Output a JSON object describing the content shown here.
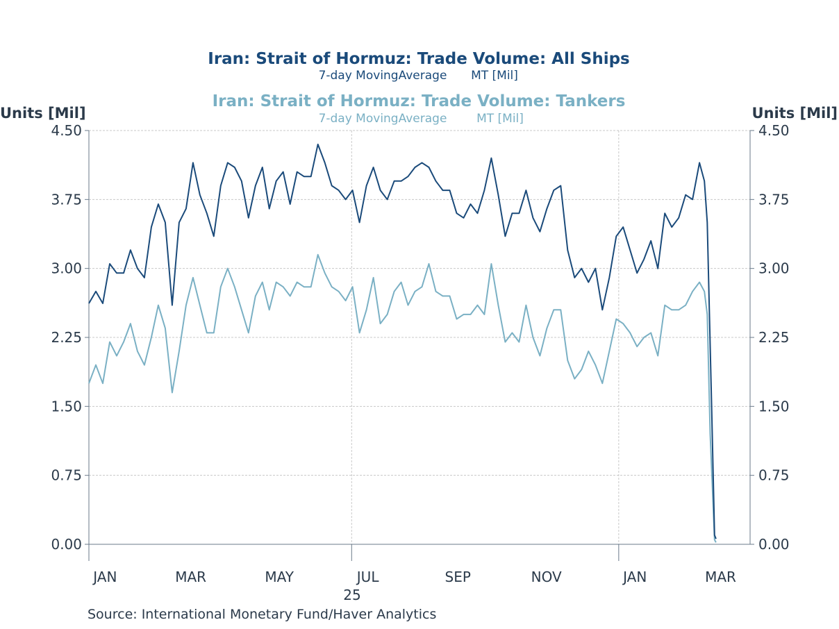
{
  "chart_data": {
    "type": "line",
    "title": "Iran: Strait of Hormuz: Trade Volume: All Ships",
    "subtitle": "7-day MovingAverage",
    "subtitle_unit": "MT [Mil]",
    "title2": "Iran: Strait of Hormuz: Trade Volume: Tankers",
    "subtitle2": "7-day MovingAverage",
    "subtitle2_unit": "MT [Mil]",
    "ylabel_left": "Units [Mil]",
    "ylabel_right": "Units [Mil]",
    "ylim": [
      0,
      4.5
    ],
    "yticks": [
      "0.00",
      "0.75",
      "1.50",
      "2.25",
      "3.00",
      "3.75",
      "4.50"
    ],
    "xticks": [
      "JAN",
      "MAR",
      "MAY",
      "JUL",
      "SEP",
      "NOV",
      "JAN",
      "MAR"
    ],
    "xtick_days": [
      15,
      74,
      135,
      196,
      258,
      319,
      380,
      439
    ],
    "year_label": "25",
    "x_start": "2025-01-01",
    "xlim_days": [
      0,
      455
    ],
    "grid": true,
    "source": "Source:  International Monetary Fund/Haver Analytics",
    "colors": {
      "all_ships": "#1a4a7a",
      "tankers": "#7ab0c4"
    },
    "step_days": 4.78,
    "series": [
      {
        "name": "All Ships",
        "values": [
          2.62,
          2.75,
          2.62,
          3.05,
          2.95,
          2.95,
          3.2,
          3.0,
          2.9,
          3.45,
          3.7,
          3.5,
          2.6,
          3.5,
          3.65,
          4.15,
          3.8,
          3.6,
          3.35,
          3.9,
          4.15,
          4.1,
          3.95,
          3.55,
          3.9,
          4.1,
          3.65,
          3.95,
          4.05,
          3.7,
          4.05,
          4.0,
          4.0,
          4.35,
          4.15,
          3.9,
          3.85,
          3.75,
          3.85,
          3.5,
          3.9,
          4.1,
          3.85,
          3.75,
          3.95,
          3.95,
          4.0,
          4.1,
          4.15,
          4.1,
          3.95,
          3.85,
          3.85,
          3.6,
          3.55,
          3.7,
          3.6,
          3.85,
          4.2,
          3.8,
          3.35,
          3.6,
          3.6,
          3.85,
          3.55,
          3.4,
          3.65,
          3.85,
          3.9,
          3.2,
          2.9,
          3.0,
          2.85,
          3.0,
          2.55,
          2.9,
          3.35,
          3.45,
          3.2,
          2.95,
          3.1,
          3.3,
          3.0,
          3.6,
          3.45,
          3.55,
          3.8,
          3.75,
          4.15
        ],
        "tail_days": [
          424,
          426,
          429,
          431,
          432
        ],
        "tail_values": [
          3.95,
          3.5,
          1.5,
          0.1,
          0.06
        ]
      },
      {
        "name": "Tankers",
        "values": [
          1.75,
          1.95,
          1.75,
          2.2,
          2.05,
          2.2,
          2.4,
          2.1,
          1.95,
          2.25,
          2.6,
          2.35,
          1.65,
          2.1,
          2.6,
          2.9,
          2.6,
          2.3,
          2.3,
          2.8,
          3.0,
          2.8,
          2.55,
          2.3,
          2.7,
          2.85,
          2.55,
          2.85,
          2.8,
          2.7,
          2.85,
          2.8,
          2.8,
          3.15,
          2.95,
          2.8,
          2.75,
          2.65,
          2.8,
          2.3,
          2.55,
          2.9,
          2.4,
          2.5,
          2.75,
          2.85,
          2.6,
          2.75,
          2.8,
          3.05,
          2.75,
          2.7,
          2.7,
          2.45,
          2.5,
          2.5,
          2.6,
          2.5,
          3.05,
          2.6,
          2.2,
          2.3,
          2.2,
          2.6,
          2.25,
          2.05,
          2.35,
          2.55,
          2.55,
          2.0,
          1.8,
          1.9,
          2.1,
          1.95,
          1.75,
          2.1,
          2.45,
          2.4,
          2.3,
          2.15,
          2.25,
          2.3,
          2.05,
          2.6,
          2.55,
          2.55,
          2.6,
          2.75,
          2.85
        ],
        "tail_days": [
          424,
          426,
          428,
          431,
          432
        ],
        "tail_values": [
          2.75,
          2.5,
          1.2,
          0.05,
          0.02
        ]
      }
    ]
  }
}
